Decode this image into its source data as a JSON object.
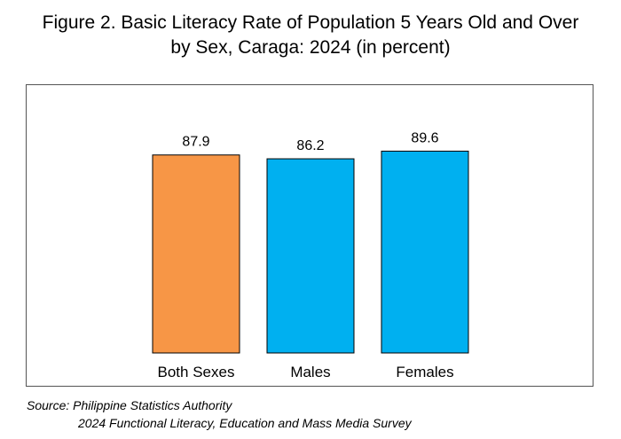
{
  "title": {
    "line1": "Figure 2. Basic Literacy Rate of Population 5 Years Old and Over",
    "line2": "by Sex, Caraga: 2024 (in percent)"
  },
  "source": {
    "line1": "Source: Philippine Statistics Authority",
    "line2": "2024 Functional Literacy, Education and Mass Media Survey"
  },
  "chart_data": {
    "type": "bar",
    "title": "Figure 2. Basic Literacy Rate of Population 5 Years Old and Over by Sex, Caraga: 2024 (in percent)",
    "categories": [
      "Both Sexes",
      "Males",
      "Females"
    ],
    "values": [
      87.9,
      86.2,
      89.6
    ],
    "value_labels": [
      "87.9",
      "86.2",
      "89.6"
    ],
    "colors": [
      "#F79646",
      "#00B0F0",
      "#00B0F0"
    ],
    "bar_outline": "#000000",
    "ylim": [
      0,
      100
    ],
    "xlabel": "",
    "ylabel": "",
    "grid": false,
    "legend": "none",
    "axes_visible": false
  }
}
